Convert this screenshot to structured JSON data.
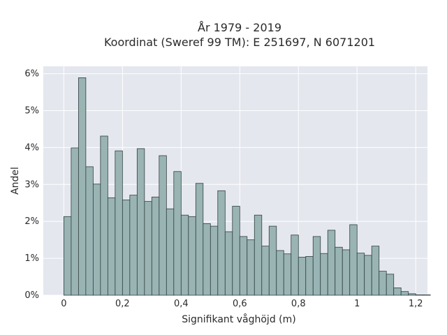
{
  "chart_data": {
    "type": "bar",
    "title_line1": "År 1979 - 2019",
    "title_line2": "Koordinat (Sweref 99 TM): E 251697, N 6071201",
    "xlabel": "Signifikant våghöjd (m)",
    "ylabel": "Andel",
    "xlim": [
      -0.07,
      1.24
    ],
    "ylim": [
      0,
      6.2
    ],
    "bin_width": 0.025,
    "x_start": 0.0,
    "x_ticks": [
      {
        "value": 0,
        "label": "0"
      },
      {
        "value": 0.2,
        "label": "0,2"
      },
      {
        "value": 0.4,
        "label": "0,4"
      },
      {
        "value": 0.6,
        "label": "0,6"
      },
      {
        "value": 0.8,
        "label": "0,8"
      },
      {
        "value": 1.0,
        "label": "1"
      },
      {
        "value": 1.2,
        "label": "1,2"
      }
    ],
    "y_ticks": [
      {
        "value": 0,
        "label": "0%"
      },
      {
        "value": 1,
        "label": "1%"
      },
      {
        "value": 2,
        "label": "2%"
      },
      {
        "value": 3,
        "label": "3%"
      },
      {
        "value": 4,
        "label": "4%"
      },
      {
        "value": 5,
        "label": "5%"
      },
      {
        "value": 6,
        "label": "6%"
      }
    ],
    "values_percent": [
      2.13,
      3.99,
      5.89,
      3.48,
      3.01,
      4.31,
      2.64,
      3.91,
      2.58,
      2.71,
      3.97,
      2.54,
      2.66,
      3.78,
      2.34,
      3.35,
      2.17,
      2.13,
      3.03,
      1.94,
      1.87,
      2.83,
      1.72,
      2.41,
      1.59,
      1.5,
      2.17,
      1.33,
      1.87,
      1.21,
      1.12,
      1.63,
      1.03,
      1.05,
      1.59,
      1.13,
      1.76,
      1.3,
      1.23,
      1.91,
      1.14,
      1.08,
      1.33,
      0.65,
      0.57,
      0.2,
      0.1,
      0.04,
      0.01,
      0.01
    ],
    "grid": true,
    "colors": {
      "plot_background": "#e5e7ef",
      "bar_fill": "#9ab4b4",
      "bar_edge": "#2f3f3f",
      "grid": "#ffffff"
    }
  }
}
